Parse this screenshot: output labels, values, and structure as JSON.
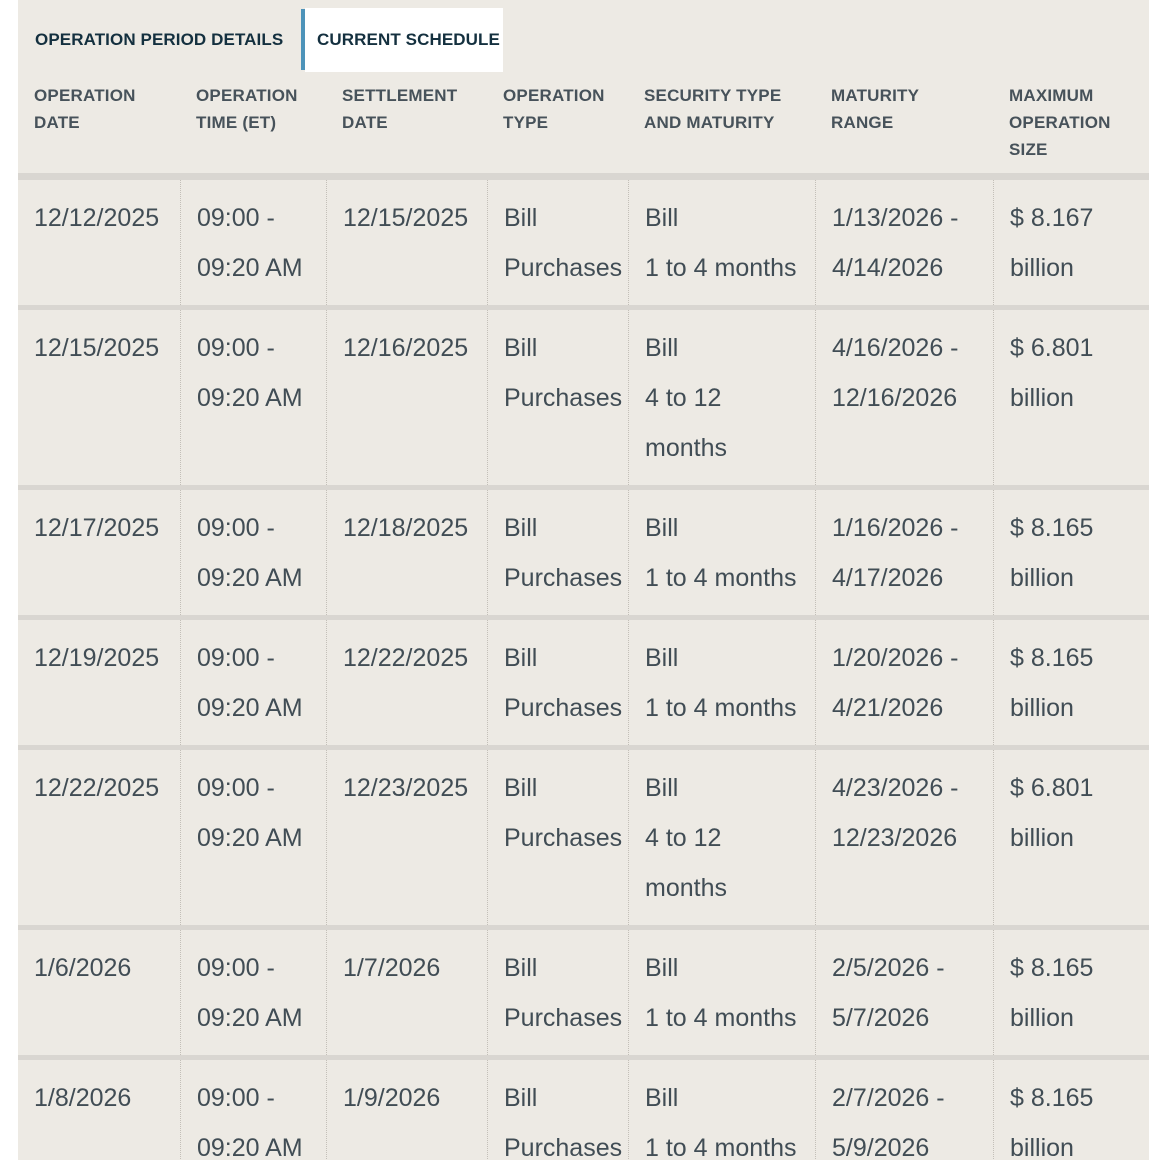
{
  "tabs": {
    "inactive_label": "OPERATION PERIOD DETAILS",
    "active_label": "CURRENT SCHEDULE"
  },
  "colors": {
    "surface_background": "#EDEAE4",
    "active_tab_background": "#FFFFFF",
    "tab_divider_accent": "#4D93B9",
    "tab_text": "#14303F",
    "header_text": "#47525A",
    "cell_text": "#414D55",
    "row_separator": "#D9D6D1"
  },
  "table": {
    "columns": [
      [
        "OPERATION",
        "DATE"
      ],
      [
        "OPERATION",
        "TIME (ET)"
      ],
      [
        "SETTLEMENT",
        "DATE"
      ],
      [
        "OPERATION",
        "TYPE"
      ],
      [
        "SECURITY TYPE",
        "AND MATURITY"
      ],
      [
        "MATURITY",
        "RANGE"
      ],
      [
        "MAXIMUM",
        "OPERATION",
        "SIZE"
      ]
    ],
    "rows": [
      {
        "cells": [
          [
            "12/12/2025"
          ],
          [
            "09:00 -",
            "09:20 AM"
          ],
          [
            "12/15/2025"
          ],
          [
            "Bill",
            "Purchases"
          ],
          [
            "Bill",
            "1 to 4 months"
          ],
          [
            "1/13/2026 -",
            "4/14/2026"
          ],
          [
            "$ 8.167",
            "billion"
          ]
        ]
      },
      {
        "cells": [
          [
            "12/15/2025"
          ],
          [
            "09:00 -",
            "09:20 AM"
          ],
          [
            "12/16/2025"
          ],
          [
            "Bill",
            "Purchases"
          ],
          [
            "Bill",
            "4 to 12",
            "months"
          ],
          [
            "4/16/2026 -",
            "12/16/2026"
          ],
          [
            "$ 6.801",
            "billion"
          ]
        ]
      },
      {
        "cells": [
          [
            "12/17/2025"
          ],
          [
            "09:00 -",
            "09:20 AM"
          ],
          [
            "12/18/2025"
          ],
          [
            "Bill",
            "Purchases"
          ],
          [
            "Bill",
            "1 to 4 months"
          ],
          [
            "1/16/2026 -",
            "4/17/2026"
          ],
          [
            "$ 8.165",
            "billion"
          ]
        ]
      },
      {
        "cells": [
          [
            "12/19/2025"
          ],
          [
            "09:00 -",
            "09:20 AM"
          ],
          [
            "12/22/2025"
          ],
          [
            "Bill",
            "Purchases"
          ],
          [
            "Bill",
            "1 to 4 months"
          ],
          [
            "1/20/2026 -",
            "4/21/2026"
          ],
          [
            "$ 8.165",
            "billion"
          ]
        ]
      },
      {
        "cells": [
          [
            "12/22/2025"
          ],
          [
            "09:00 -",
            "09:20 AM"
          ],
          [
            "12/23/2025"
          ],
          [
            "Bill",
            "Purchases"
          ],
          [
            "Bill",
            "4 to 12",
            "months"
          ],
          [
            "4/23/2026 -",
            "12/23/2026"
          ],
          [
            "$ 6.801",
            "billion"
          ]
        ]
      },
      {
        "cells": [
          [
            "1/6/2026"
          ],
          [
            "09:00 -",
            "09:20 AM"
          ],
          [
            "1/7/2026"
          ],
          [
            "Bill",
            "Purchases"
          ],
          [
            "Bill",
            "1 to 4 months"
          ],
          [
            "2/5/2026 -",
            "5/7/2026"
          ],
          [
            "$ 8.165",
            "billion"
          ]
        ]
      },
      {
        "cells": [
          [
            "1/8/2026"
          ],
          [
            "09:00 -",
            "09:20 AM"
          ],
          [
            "1/9/2026"
          ],
          [
            "Bill",
            "Purchases"
          ],
          [
            "Bill",
            "1 to 4 months"
          ],
          [
            "2/7/2026 -",
            "5/9/2026"
          ],
          [
            "$ 8.165",
            "billion"
          ]
        ]
      }
    ]
  }
}
